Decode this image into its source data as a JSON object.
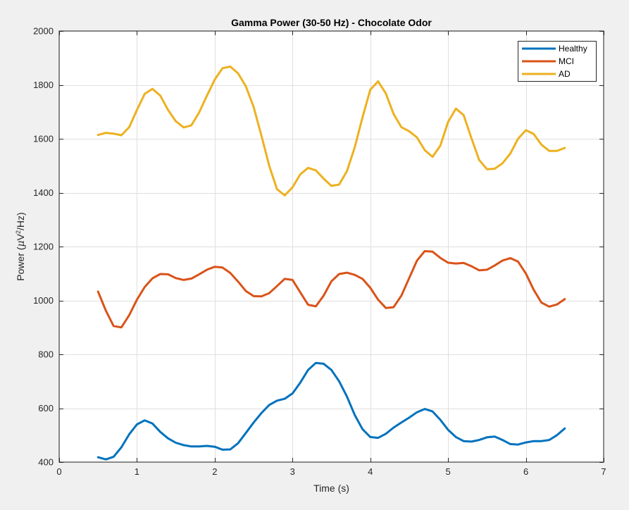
{
  "chart_data": {
    "type": "line",
    "title": "Gamma Power (30-50 Hz) - Chocolate Odor",
    "xlabel": "Time (s)",
    "ylabel": "Power (μV²/Hz)",
    "ylabel_parts": {
      "pre": "Power (",
      "mu": "μ",
      "unit": "V",
      "exp": "2",
      "post": "/Hz)"
    },
    "xlim": [
      0,
      7
    ],
    "ylim": [
      400,
      2000
    ],
    "xticks": [
      0,
      1,
      2,
      3,
      4,
      5,
      6,
      7
    ],
    "yticks": [
      400,
      600,
      800,
      1000,
      1200,
      1400,
      1600,
      1800,
      2000
    ],
    "grid": true,
    "legend_position": "top-right",
    "x": [
      0.5,
      0.6,
      0.7,
      0.8,
      0.9,
      1.0,
      1.1,
      1.2,
      1.3,
      1.4,
      1.5,
      1.6,
      1.7,
      1.8,
      1.9,
      2.0,
      2.1,
      2.2,
      2.3,
      2.4,
      2.5,
      2.6,
      2.7,
      2.8,
      2.9,
      3.0,
      3.1,
      3.2,
      3.3,
      3.4,
      3.5,
      3.6,
      3.7,
      3.8,
      3.9,
      4.0,
      4.1,
      4.2,
      4.3,
      4.4,
      4.5,
      4.6,
      4.7,
      4.8,
      4.9,
      5.0,
      5.1,
      5.2,
      5.3,
      5.4,
      5.5,
      5.6,
      5.7,
      5.8,
      5.9,
      6.0,
      6.1,
      6.2,
      6.3,
      6.4,
      6.5
    ],
    "series": [
      {
        "name": "Healthy",
        "color": "#0072BD",
        "values": [
          418,
          410,
          420,
          455,
          503,
          540,
          555,
          543,
          512,
          488,
          472,
          463,
          458,
          458,
          460,
          457,
          446,
          447,
          470,
          508,
          547,
          582,
          612,
          628,
          635,
          655,
          695,
          742,
          768,
          765,
          742,
          700,
          643,
          575,
          522,
          493,
          490,
          505,
          528,
          547,
          565,
          585,
          597,
          588,
          557,
          520,
          493,
          478,
          476,
          482,
          492,
          495,
          482,
          467,
          465,
          473,
          478,
          478,
          482,
          500,
          525
        ]
      },
      {
        "name": "MCI",
        "color": "#D95319",
        "values": [
          1033,
          962,
          905,
          900,
          945,
          1003,
          1050,
          1082,
          1098,
          1097,
          1083,
          1076,
          1081,
          1097,
          1114,
          1125,
          1122,
          1102,
          1070,
          1035,
          1016,
          1015,
          1027,
          1053,
          1080,
          1076,
          1030,
          984,
          978,
          1018,
          1071,
          1098,
          1103,
          1095,
          1080,
          1047,
          1003,
          972,
          975,
          1018,
          1083,
          1148,
          1183,
          1181,
          1158,
          1140,
          1137,
          1139,
          1127,
          1112,
          1114,
          1130,
          1148,
          1157,
          1144,
          1100,
          1040,
          992,
          977,
          985,
          1005
        ]
      },
      {
        "name": "AD",
        "color": "#EDB120",
        "values": [
          1614,
          1622,
          1619,
          1613,
          1643,
          1707,
          1767,
          1785,
          1760,
          1707,
          1665,
          1642,
          1650,
          1698,
          1760,
          1820,
          1862,
          1868,
          1843,
          1795,
          1718,
          1612,
          1500,
          1413,
          1390,
          1420,
          1468,
          1492,
          1483,
          1452,
          1425,
          1430,
          1480,
          1568,
          1680,
          1782,
          1813,
          1768,
          1692,
          1643,
          1628,
          1605,
          1558,
          1533,
          1574,
          1662,
          1712,
          1688,
          1602,
          1521,
          1487,
          1489,
          1509,
          1545,
          1600,
          1632,
          1618,
          1578,
          1555,
          1555,
          1566
        ]
      }
    ]
  }
}
